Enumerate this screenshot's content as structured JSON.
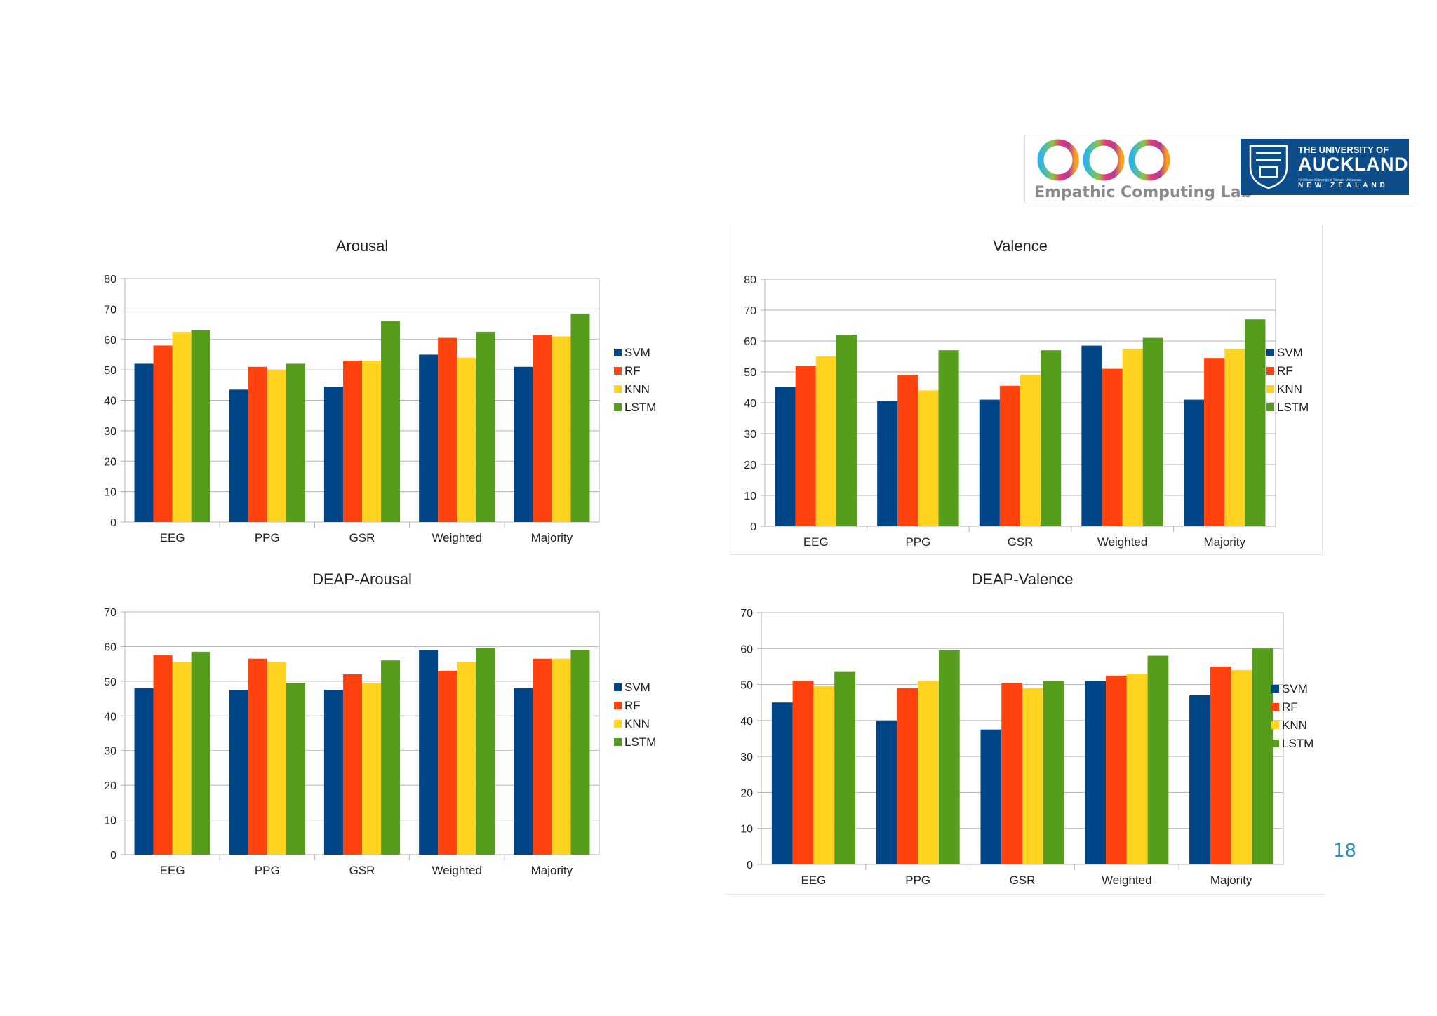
{
  "logos": {
    "lab_name": "Empathic Computing Lab",
    "university_line1": "THE UNIVERSITY OF",
    "university_line2": "AUCKLAND",
    "university_line3": "Te Whare Wānanga o Tāmaki Makaurau",
    "university_line4": "NEW ZEALAND"
  },
  "page_number": "18",
  "colors": {
    "SVM": "#004586",
    "RF": "#ff420e",
    "KNN": "#ffd320",
    "LSTM": "#579d1c"
  },
  "chart_data": [
    {
      "id": "arousal",
      "type": "bar",
      "title": "Arousal",
      "categories": [
        "EEG",
        "PPG",
        "GSR",
        "Weighted",
        "Majority"
      ],
      "ylim": [
        0,
        80
      ],
      "yticks": [
        0,
        10,
        20,
        30,
        40,
        50,
        60,
        70,
        80
      ],
      "grid": true,
      "legend": "right",
      "series": [
        {
          "name": "SVM",
          "values": [
            52,
            43.5,
            44.5,
            55,
            51
          ]
        },
        {
          "name": "RF",
          "values": [
            58,
            51,
            53,
            60.5,
            61.5
          ]
        },
        {
          "name": "KNN",
          "values": [
            62.5,
            50,
            53,
            54,
            61
          ]
        },
        {
          "name": "LSTM",
          "values": [
            63,
            52,
            66,
            62.5,
            68.5
          ]
        }
      ]
    },
    {
      "id": "valence",
      "type": "bar",
      "title": "Valence",
      "categories": [
        "EEG",
        "PPG",
        "GSR",
        "Weighted",
        "Majority"
      ],
      "ylim": [
        0,
        80
      ],
      "yticks": [
        0,
        10,
        20,
        30,
        40,
        50,
        60,
        70,
        80
      ],
      "grid": true,
      "legend": "right",
      "series": [
        {
          "name": "SVM",
          "values": [
            45,
            40.5,
            41,
            58.5,
            41
          ]
        },
        {
          "name": "RF",
          "values": [
            52,
            49,
            45.5,
            51,
            54.5
          ]
        },
        {
          "name": "KNN",
          "values": [
            55,
            44,
            49,
            57.5,
            57.5
          ]
        },
        {
          "name": "LSTM",
          "values": [
            62,
            57,
            57,
            61,
            67
          ]
        }
      ]
    },
    {
      "id": "deap-arousal",
      "type": "bar",
      "title": "DEAP-Arousal",
      "categories": [
        "EEG",
        "PPG",
        "GSR",
        "Weighted",
        "Majority"
      ],
      "ylim": [
        0,
        70
      ],
      "yticks": [
        0,
        10,
        20,
        30,
        40,
        50,
        60,
        70
      ],
      "grid": true,
      "legend": "right",
      "series": [
        {
          "name": "SVM",
          "values": [
            48,
            47.5,
            47.5,
            59,
            48
          ]
        },
        {
          "name": "RF",
          "values": [
            57.5,
            56.5,
            52,
            53,
            56.5
          ]
        },
        {
          "name": "KNN",
          "values": [
            55.5,
            55.5,
            49.5,
            55.5,
            56.5
          ]
        },
        {
          "name": "LSTM",
          "values": [
            58.5,
            49.5,
            56,
            59.5,
            59
          ]
        }
      ]
    },
    {
      "id": "deap-valence",
      "type": "bar",
      "title": "DEAP-Valence",
      "categories": [
        "EEG",
        "PPG",
        "GSR",
        "Weighted",
        "Majority"
      ],
      "ylim": [
        0,
        70
      ],
      "yticks": [
        0,
        10,
        20,
        30,
        40,
        50,
        60,
        70
      ],
      "grid": true,
      "legend": "right",
      "series": [
        {
          "name": "SVM",
          "values": [
            45,
            40,
            37.5,
            51,
            47
          ]
        },
        {
          "name": "RF",
          "values": [
            51,
            49,
            50.5,
            52.5,
            55
          ]
        },
        {
          "name": "KNN",
          "values": [
            49.5,
            51,
            49,
            53,
            54
          ]
        },
        {
          "name": "LSTM",
          "values": [
            53.5,
            59.5,
            51,
            58,
            60
          ]
        }
      ]
    }
  ]
}
